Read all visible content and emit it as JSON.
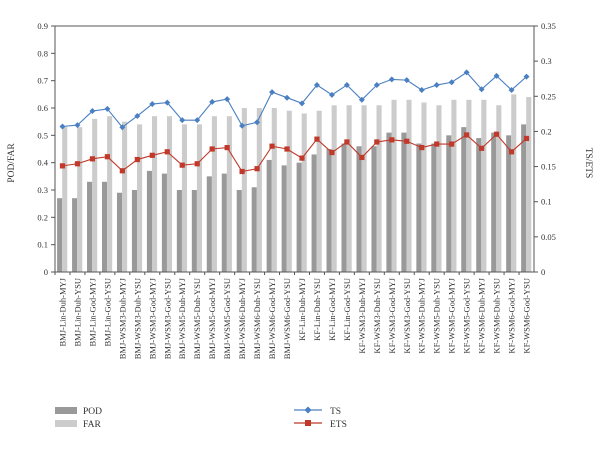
{
  "chart_data": {
    "type": "bar",
    "categories": [
      "BMJ-Lin-Duh-MYJ",
      "BMJ-Lin-Duh-YSU",
      "BMJ-Lin-God-MYJ",
      "BMJ-Lin-God-YSU",
      "BMJ-WSM3-Duh-MYJ",
      "BMJ-WSM3-Duh-YSU",
      "BMJ-WSM3-God-MYJ",
      "BMJ-WSM3-God-YSU",
      "BMJ-WSM5-Duh-MYJ",
      "BMJ-WSM5-Duh-YSU",
      "BMJ-WSM5-God-MYJ",
      "BMJ-WSM5-God-YSU",
      "BMJ-WSM6-Duh-MYJ",
      "BMJ-WSM6-Duh-YSU",
      "BMJ-WSM6-God-MYJ",
      "BMJ-WSM6-God-YSU",
      "KF-Lin-Duh-MYJ",
      "KF-Lin-Duh-YSU",
      "KF-Lin-God-MYJ",
      "KF-Lin-God-YSU",
      "KF-WSM3-Duh-MYJ",
      "KF-WSM3-Duh-YSU",
      "KF-WSM3-God-MYJ",
      "KF-WSM3-God-YSU",
      "KF-WSM5-Duh-MYJ",
      "KF-WSM5-Duh-YSU",
      "KF-WSM5-God-MYJ",
      "KF-WSM5-God-YSU",
      "KF-WSM6-Duh-MYJ",
      "KF-WSM6-Duh-YSU",
      "KF-WSM6-God-MYJ",
      "KF-WSM6-God-YSU"
    ],
    "series": [
      {
        "name": "POD",
        "axis": "left",
        "kind": "bar",
        "color": "#999999",
        "values": [
          0.27,
          0.27,
          0.33,
          0.33,
          0.29,
          0.3,
          0.37,
          0.36,
          0.3,
          0.3,
          0.35,
          0.36,
          0.3,
          0.31,
          0.41,
          0.39,
          0.4,
          0.43,
          0.45,
          0.47,
          0.46,
          0.46,
          0.51,
          0.51,
          0.47,
          0.47,
          0.5,
          0.53,
          0.49,
          0.51,
          0.5,
          0.54
        ]
      },
      {
        "name": "FAR",
        "axis": "left",
        "kind": "bar",
        "color": "#cccccc",
        "values": [
          0.53,
          0.53,
          0.56,
          0.57,
          0.55,
          0.54,
          0.57,
          0.57,
          0.54,
          0.54,
          0.57,
          0.57,
          0.6,
          0.6,
          0.6,
          0.59,
          0.58,
          0.59,
          0.61,
          0.61,
          0.61,
          0.61,
          0.63,
          0.63,
          0.62,
          0.61,
          0.63,
          0.63,
          0.63,
          0.61,
          0.65,
          0.64
        ]
      },
      {
        "name": "TS",
        "axis": "right",
        "kind": "line",
        "color": "#4a7fc1",
        "marker": "diamond",
        "values": [
          0.207,
          0.209,
          0.229,
          0.232,
          0.206,
          0.222,
          0.239,
          0.241,
          0.216,
          0.216,
          0.242,
          0.246,
          0.208,
          0.213,
          0.256,
          0.248,
          0.24,
          0.266,
          0.252,
          0.266,
          0.245,
          0.266,
          0.274,
          0.273,
          0.259,
          0.266,
          0.27,
          0.284,
          0.26,
          0.279,
          0.259,
          0.278
        ]
      },
      {
        "name": "ETS",
        "axis": "right",
        "kind": "line",
        "color": "#c0392b",
        "marker": "square",
        "values": [
          0.151,
          0.154,
          0.161,
          0.164,
          0.144,
          0.16,
          0.166,
          0.171,
          0.152,
          0.154,
          0.175,
          0.177,
          0.143,
          0.147,
          0.179,
          0.175,
          0.162,
          0.189,
          0.17,
          0.185,
          0.163,
          0.185,
          0.188,
          0.186,
          0.177,
          0.182,
          0.182,
          0.195,
          0.176,
          0.196,
          0.171,
          0.19
        ]
      }
    ],
    "ylabel": "POD/FAR",
    "ylabel_right": "TS/ETS",
    "ylim": [
      0,
      0.9
    ],
    "ylim_right": [
      0,
      0.35
    ],
    "yticks": [
      "0",
      "0.1",
      "0.2",
      "0.3",
      "0.4",
      "0.5",
      "0.6",
      "0.7",
      "0.8",
      "0.9"
    ],
    "yticks_right": [
      "0",
      "0.05",
      "0.1",
      "0.15",
      "0.2",
      "0.25",
      "0.3",
      "0.35"
    ],
    "legend": [
      "POD",
      "FAR",
      "TS",
      "ETS"
    ],
    "legend_position": "bottom",
    "grid": false
  }
}
